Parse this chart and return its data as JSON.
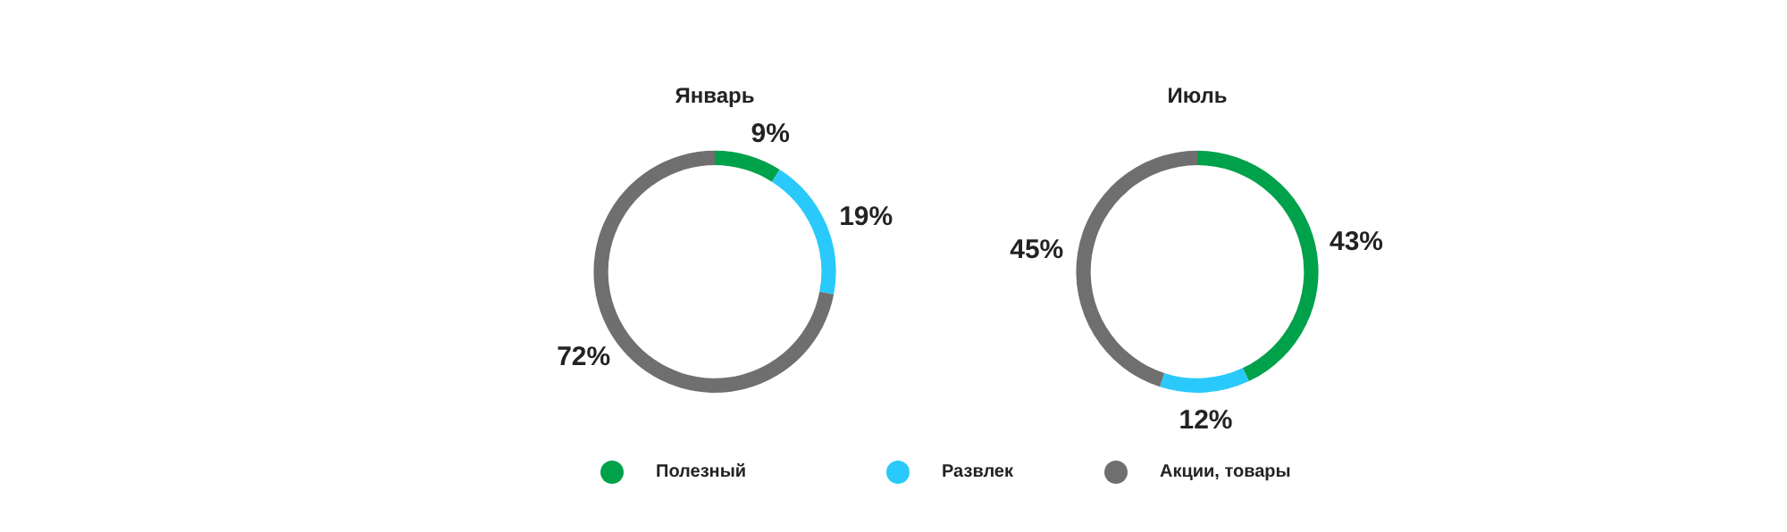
{
  "chart_data": [
    {
      "type": "donut",
      "title": "Январь",
      "categories": [
        "Полезный",
        "Развлек",
        "Акции, товары"
      ],
      "values": [
        9,
        19,
        72
      ],
      "value_labels": [
        "9%",
        "19%",
        "72%"
      ],
      "colors": [
        "#00a14b",
        "#29c9fb",
        "#6f6f6f"
      ],
      "legend": "bottom"
    },
    {
      "type": "donut",
      "title": "Июль",
      "categories": [
        null,
        null,
        null
      ],
      "values": [
        43,
        12,
        45
      ],
      "value_labels": [
        "43%",
        "12%",
        "45%"
      ],
      "colors": [
        "#00a14b",
        "#29c9fb",
        "#6f6f6f"
      ]
    }
  ]
}
